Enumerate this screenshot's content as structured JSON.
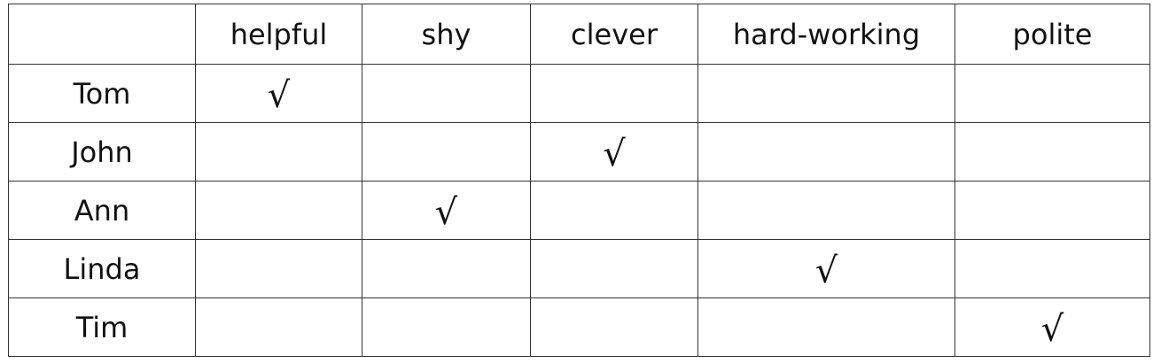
{
  "columns": [
    "helpful",
    "shy",
    "clever",
    "hard-working",
    "polite"
  ],
  "rows": [
    {
      "name": "Tom",
      "checked": "helpful"
    },
    {
      "name": "John",
      "checked": "clever"
    },
    {
      "name": "Ann",
      "checked": "shy"
    },
    {
      "name": "Linda",
      "checked": "hard-working"
    },
    {
      "name": "Tim",
      "checked": "polite"
    }
  ],
  "check_mark": "√"
}
